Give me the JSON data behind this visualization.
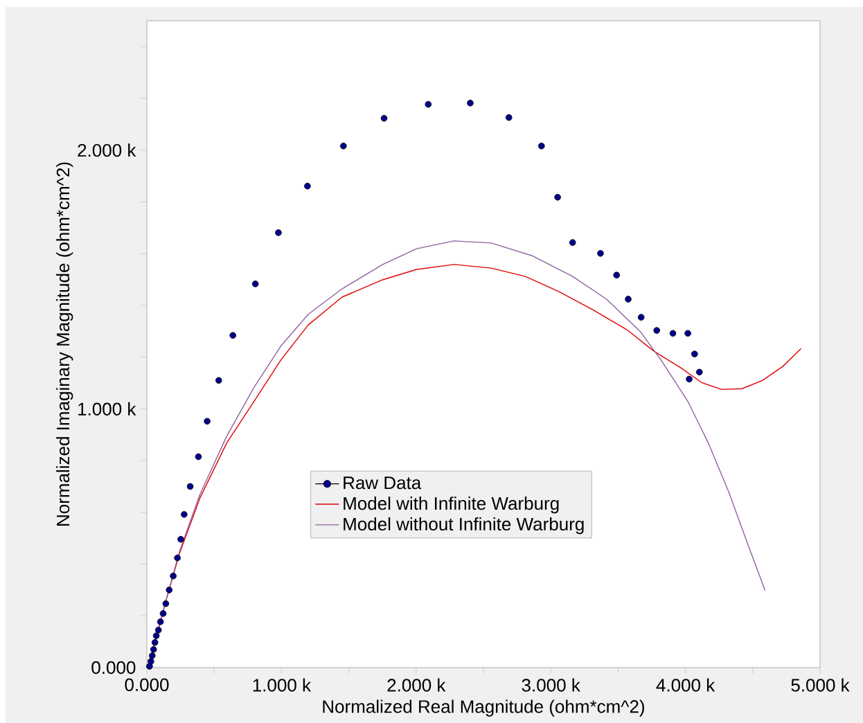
{
  "chart_data": {
    "type": "line",
    "xlabel": "Normalized Real Magnitude (ohm*cm^2)",
    "ylabel": "Normalized Imaginary Magnitude (ohm*cm^2)",
    "xlim": [
      0,
      5000
    ],
    "ylim": [
      0,
      2500
    ],
    "xticks": [
      {
        "value": 0,
        "label": "0.000"
      },
      {
        "value": 500,
        "label": null
      },
      {
        "value": 1000,
        "label": "1.000 k"
      },
      {
        "value": 1500,
        "label": null
      },
      {
        "value": 2000,
        "label": "2.000 k"
      },
      {
        "value": 2500,
        "label": null
      },
      {
        "value": 3000,
        "label": "3.000 k"
      },
      {
        "value": 3500,
        "label": null
      },
      {
        "value": 4000,
        "label": "4.000 k"
      },
      {
        "value": 4500,
        "label": null
      },
      {
        "value": 5000,
        "label": "5.000 k"
      }
    ],
    "yticks": [
      {
        "value": 0,
        "label": "0.000"
      },
      {
        "value": 200,
        "label": null
      },
      {
        "value": 400,
        "label": null
      },
      {
        "value": 600,
        "label": null
      },
      {
        "value": 800,
        "label": null
      },
      {
        "value": 1000,
        "label": "1.000 k"
      },
      {
        "value": 1200,
        "label": null
      },
      {
        "value": 1400,
        "label": null
      },
      {
        "value": 1600,
        "label": null
      },
      {
        "value": 1800,
        "label": null
      },
      {
        "value": 2000,
        "label": "2.000 k"
      },
      {
        "value": 2200,
        "label": null
      },
      {
        "value": 2400,
        "label": null
      }
    ],
    "legend": "center",
    "grid": false,
    "series": [
      {
        "name": "Raw Data",
        "type": "scatter",
        "marker": "circle",
        "color": "#00008b",
        "x": [
          20,
          30,
          40,
          50,
          60,
          70,
          86,
          101,
          121,
          141,
          166,
          196,
          227,
          252,
          277,
          322,
          383,
          448,
          534,
          639,
          806,
          977,
          1193,
          1460,
          1762,
          2090,
          2402,
          2689,
          2931,
          3051,
          3162,
          3369,
          3489,
          3575,
          3671,
          3787,
          3907,
          4018,
          4068,
          4104,
          4028
        ],
        "values": [
          5,
          24,
          46,
          70,
          97,
          123,
          145,
          177,
          209,
          247,
          300,
          354,
          424,
          496,
          592,
          700,
          815,
          952,
          1110,
          1284,
          1483,
          1681,
          1861,
          2016,
          2123,
          2177,
          2182,
          2126,
          2016,
          1818,
          1643,
          1601,
          1517,
          1424,
          1354,
          1303,
          1292,
          1292,
          1212,
          1142,
          1115
        ]
      },
      {
        "name": "Model with Infinite Warburg",
        "type": "line",
        "color": "#e00000",
        "x": [
          10,
          50,
          141,
          242,
          393,
          594,
          796,
          997,
          1198,
          1450,
          1752,
          2004,
          2281,
          2558,
          2810,
          3061,
          3313,
          3565,
          3766,
          3968,
          4119,
          4270,
          4421,
          4572,
          4723,
          4859
        ],
        "values": [
          0,
          78,
          257,
          440,
          654,
          869,
          1029,
          1190,
          1324,
          1432,
          1499,
          1539,
          1558,
          1544,
          1512,
          1453,
          1383,
          1306,
          1223,
          1158,
          1102,
          1075,
          1078,
          1110,
          1164,
          1233
        ]
      },
      {
        "name": "Model without Infinite Warburg",
        "type": "line",
        "color": "#9060a0",
        "x": [
          10,
          50,
          141,
          242,
          393,
          594,
          796,
          997,
          1198,
          1450,
          1752,
          2004,
          2281,
          2558,
          2860,
          3162,
          3414,
          3666,
          3817,
          4018,
          4169,
          4320,
          4471,
          4592
        ],
        "values": [
          0,
          78,
          257,
          448,
          668,
          895,
          1083,
          1244,
          1365,
          1464,
          1558,
          1619,
          1649,
          1641,
          1592,
          1512,
          1424,
          1298,
          1190,
          1029,
          869,
          681,
          466,
          298
        ]
      }
    ]
  }
}
